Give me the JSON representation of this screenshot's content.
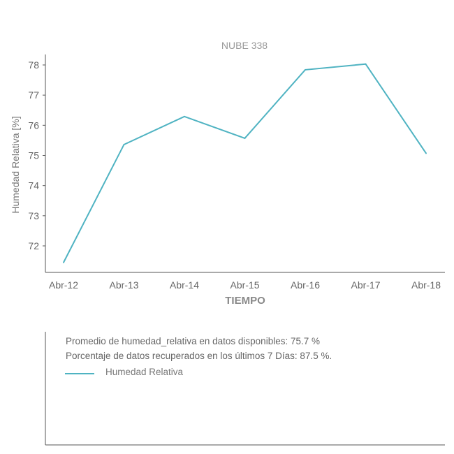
{
  "chart_data": {
    "type": "line",
    "title": "NUBE 338",
    "xlabel": "TIEMPO",
    "ylabel": "Humedad Relativa [%]",
    "categories": [
      "Abr-12",
      "Abr-13",
      "Abr-14",
      "Abr-15",
      "Abr-16",
      "Abr-17",
      "Abr-18"
    ],
    "series": [
      {
        "name": "Humedad Relativa",
        "color": "#4fb3c2",
        "values": [
          71.45,
          75.36,
          76.29,
          75.57,
          77.84,
          78.03,
          75.07
        ]
      }
    ],
    "yticks": [
      "72",
      "73",
      "74",
      "75",
      "76",
      "77",
      "78"
    ],
    "ylim": [
      71.2,
      78.35
    ],
    "grid": false,
    "legend": "bottom-left"
  },
  "info": {
    "average_text": "Promedio de humedad_relativa en datos disponibles: 75.7 %",
    "recovered_text": "Porcentaje de datos recuperados en los últimos 7 Días: 87.5 %."
  },
  "legend": {
    "label": "Humedad Relativa"
  }
}
